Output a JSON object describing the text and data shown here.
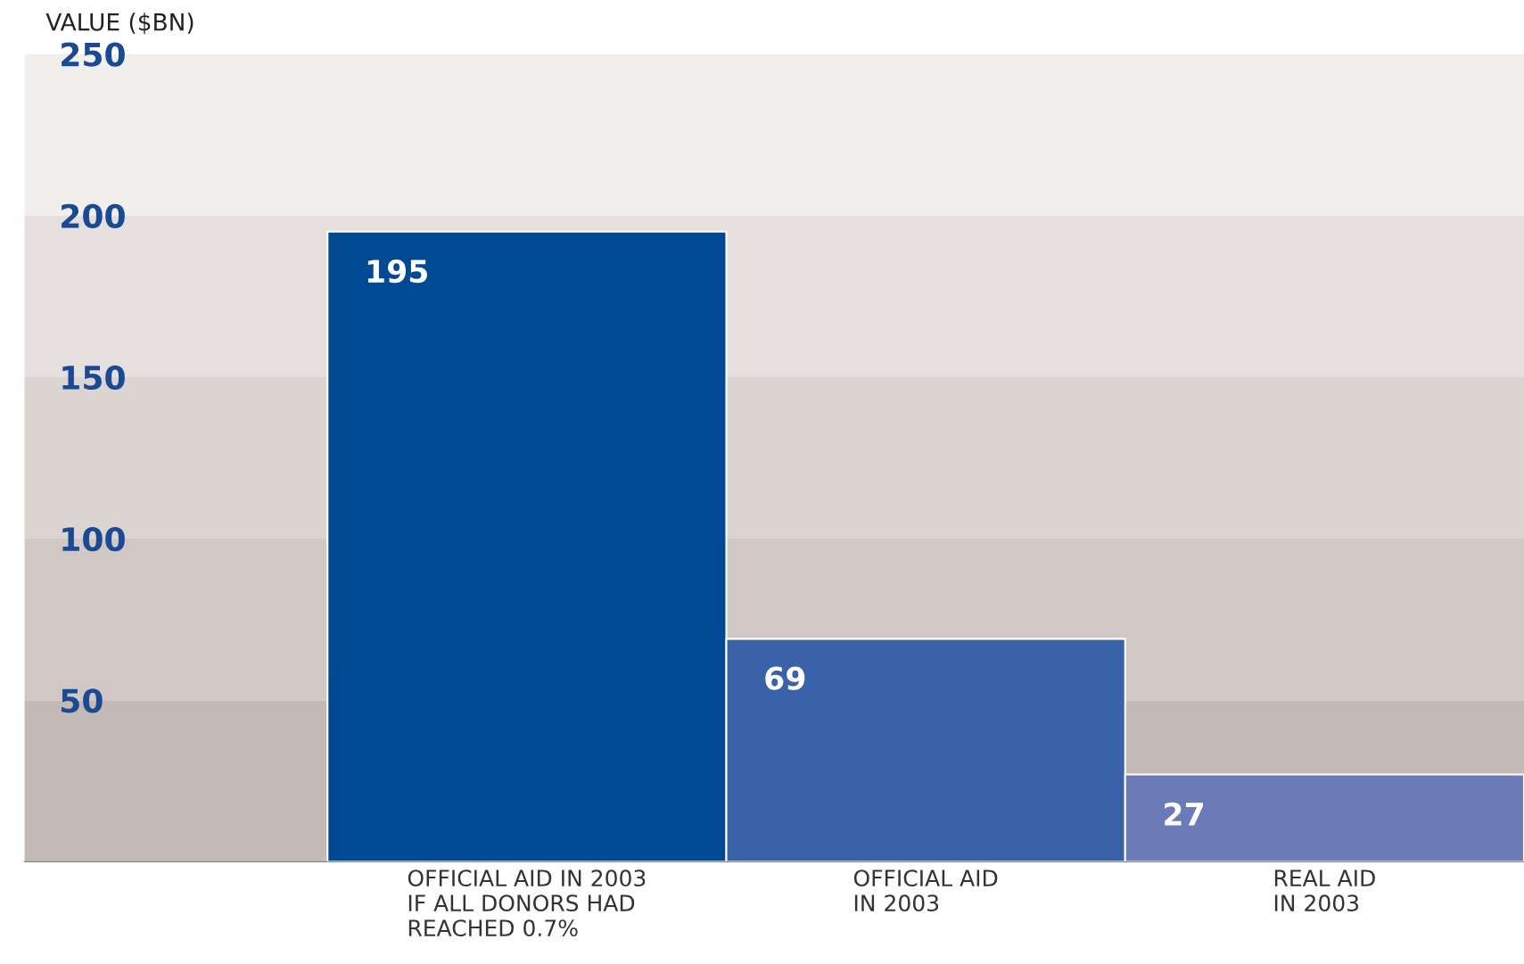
{
  "chart_data": {
    "type": "bar",
    "ylabel": "VALUE ($BN)",
    "categories": [
      "OFFICIAL AID IN 2003\nIF ALL DONORS HAD\nREACHED 0.7%",
      "OFFICIAL AID\nIN 2003",
      "REAL AID\nIN 2003"
    ],
    "values": [
      195,
      69,
      27
    ],
    "colors": [
      "#004a93",
      "#3a62a8",
      "#6a7bb8"
    ],
    "data_labels": true,
    "ylim": [
      0,
      250
    ],
    "yticks": [
      50,
      100,
      150,
      200,
      250
    ],
    "bands": [
      {
        "axis": "y",
        "from": 0,
        "to": 50,
        "color": "#c4b9b6"
      },
      {
        "axis": "y",
        "from": 50,
        "to": 100,
        "color": "#d1c7c4"
      },
      {
        "axis": "y",
        "from": 100,
        "to": 150,
        "color": "#dbd4d1"
      },
      {
        "axis": "y",
        "from": 150,
        "to": 200,
        "color": "#e5e0dd"
      },
      {
        "axis": "y",
        "from": 200,
        "to": 250,
        "color": "#f0efed"
      }
    ],
    "grid": false,
    "legend": false
  }
}
